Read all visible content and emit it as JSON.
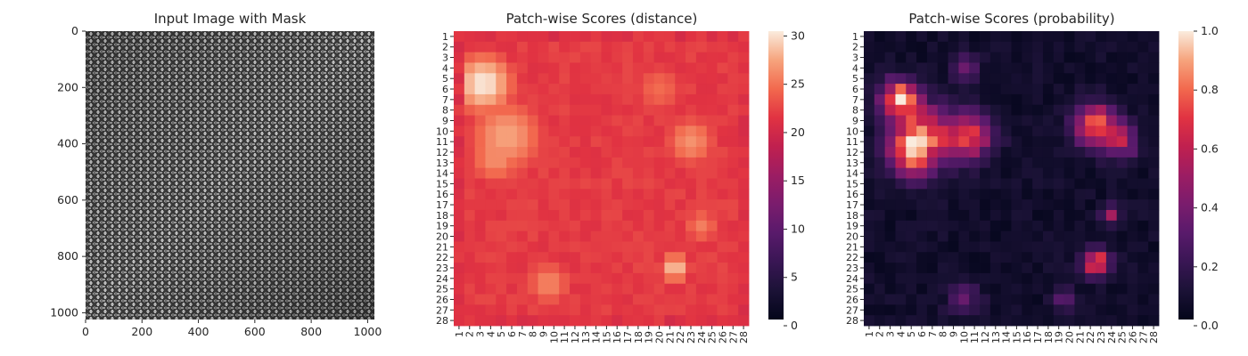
{
  "chart_data": [
    {
      "type": "image",
      "title": "Input Image with Mask",
      "xlim": [
        0,
        1024
      ],
      "ylim": [
        1024,
        0
      ],
      "xticks": [
        0,
        200,
        400,
        600,
        800,
        1000
      ],
      "yticks": [
        0,
        200,
        400,
        600,
        800,
        1000
      ],
      "image_description": "grayscale close-up of woven burlap/linen fabric texture"
    },
    {
      "type": "heatmap",
      "title": "Patch-wise Scores (distance)",
      "rows": 28,
      "cols": 28,
      "x_tick_labels": [
        "1",
        "2",
        "3",
        "4",
        "5",
        "6",
        "7",
        "8",
        "9",
        "10",
        "11",
        "12",
        "13",
        "14",
        "15",
        "16",
        "17",
        "18",
        "19",
        "20",
        "21",
        "22",
        "23",
        "24",
        "25",
        "26",
        "27",
        "28"
      ],
      "y_tick_labels": [
        "1",
        "2",
        "3",
        "4",
        "5",
        "6",
        "7",
        "8",
        "9",
        "10",
        "11",
        "12",
        "13",
        "14",
        "15",
        "16",
        "17",
        "18",
        "19",
        "20",
        "21",
        "22",
        "23",
        "24",
        "25",
        "26",
        "27",
        "28"
      ],
      "colorbar": {
        "min": 0,
        "max": 30.5,
        "ticks": [
          0,
          5,
          10,
          15,
          20,
          25,
          30
        ],
        "colormap": "rocket"
      },
      "value_range": [
        18,
        30.5
      ],
      "hotspots": [
        {
          "row": 5.5,
          "col": 3.3,
          "value": 30.5,
          "spread": 3.2
        },
        {
          "row": 10.5,
          "col": 5.5,
          "value": 27.5,
          "spread": 4.0
        },
        {
          "row": 12.5,
          "col": 4.5,
          "value": 26.5,
          "spread": 3.0
        },
        {
          "row": 11.0,
          "col": 23.0,
          "value": 26.5,
          "spread": 2.8
        },
        {
          "row": 23.0,
          "col": 21.5,
          "value": 29.0,
          "spread": 1.6
        },
        {
          "row": 24.5,
          "col": 9.5,
          "value": 26.0,
          "spread": 2.5
        },
        {
          "row": 19.0,
          "col": 24.0,
          "value": 25.5,
          "spread": 2.0
        },
        {
          "row": 6.0,
          "col": 20.0,
          "value": 24.5,
          "spread": 3.0
        }
      ],
      "border_value": 20
    },
    {
      "type": "heatmap",
      "title": "Patch-wise Scores (probability)",
      "rows": 28,
      "cols": 28,
      "x_tick_labels": [
        "1",
        "2",
        "3",
        "4",
        "5",
        "6",
        "7",
        "8",
        "9",
        "10",
        "11",
        "12",
        "13",
        "14",
        "15",
        "16",
        "17",
        "18",
        "19",
        "20",
        "21",
        "22",
        "23",
        "24",
        "25",
        "26",
        "27",
        "28"
      ],
      "y_tick_labels": [
        "1",
        "2",
        "3",
        "4",
        "5",
        "6",
        "7",
        "8",
        "9",
        "10",
        "11",
        "12",
        "13",
        "14",
        "15",
        "16",
        "17",
        "18",
        "19",
        "20",
        "21",
        "22",
        "23",
        "24",
        "25",
        "26",
        "27",
        "28"
      ],
      "colorbar": {
        "min": 0.0,
        "max": 1.0,
        "ticks": [
          0.0,
          0.2,
          0.4,
          0.6,
          0.8,
          1.0
        ],
        "colormap": "rocket"
      },
      "hotspots": [
        {
          "row": 7.0,
          "col": 4.0,
          "value": 0.95,
          "spread": 1.8
        },
        {
          "row": 10.5,
          "col": 6.0,
          "value": 0.75,
          "spread": 2.8
        },
        {
          "row": 12.5,
          "col": 5.0,
          "value": 0.6,
          "spread": 2.0
        },
        {
          "row": 10.5,
          "col": 10.5,
          "value": 0.7,
          "spread": 2.2
        },
        {
          "row": 9.5,
          "col": 22.5,
          "value": 0.85,
          "spread": 2.0
        },
        {
          "row": 11.0,
          "col": 25.0,
          "value": 0.5,
          "spread": 1.5
        },
        {
          "row": 22.5,
          "col": 22.5,
          "value": 0.9,
          "spread": 1.2
        },
        {
          "row": 18.0,
          "col": 24.0,
          "value": 0.55,
          "spread": 0.8
        },
        {
          "row": 4.0,
          "col": 10.0,
          "value": 0.35,
          "spread": 1.2
        },
        {
          "row": 26.0,
          "col": 10.0,
          "value": 0.3,
          "spread": 1.5
        },
        {
          "row": 26.0,
          "col": 19.5,
          "value": 0.3,
          "spread": 1.0
        }
      ]
    }
  ]
}
